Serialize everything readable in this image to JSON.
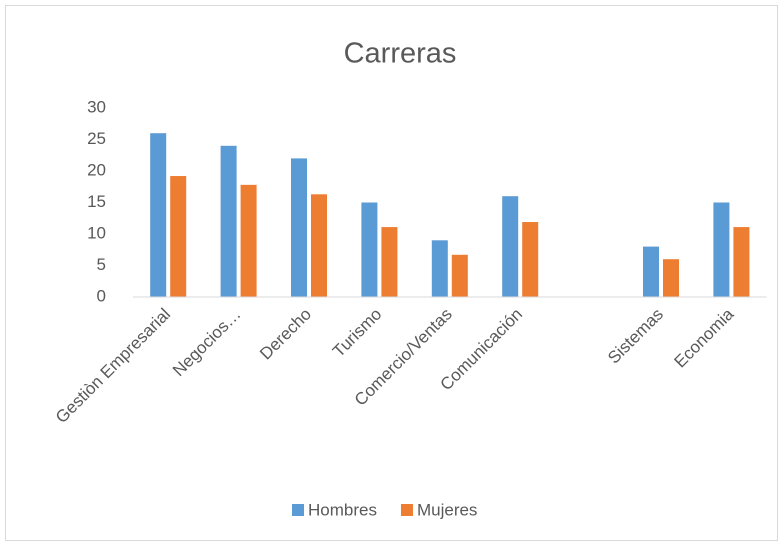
{
  "chart_data": {
    "type": "bar",
    "title": "Carreras",
    "categories": [
      "Gestiòn Empresarial",
      "Negocios…",
      "Derecho",
      "Turismo",
      "Comercio/Ventas",
      "Comunicación",
      null,
      "Sistemas",
      "Economia"
    ],
    "series": [
      {
        "name": "Hombres",
        "color": "#5b9bd5",
        "values": [
          26,
          24,
          22,
          15,
          9,
          16,
          null,
          8,
          15
        ]
      },
      {
        "name": "Mujeres",
        "color": "#ed7d31",
        "values": [
          19.2,
          17.8,
          16.3,
          11.1,
          6.7,
          11.9,
          null,
          6,
          11.1
        ]
      }
    ],
    "ylim": [
      0,
      30
    ],
    "yticks": [
      0,
      5,
      10,
      15,
      20,
      25,
      30
    ],
    "grid": false,
    "legend": "bottom"
  }
}
